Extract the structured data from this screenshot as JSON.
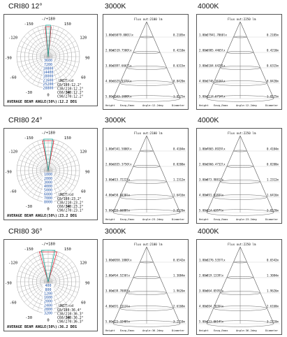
{
  "rows": [
    {
      "cri_label": "CRI80   12°",
      "col_labels": [
        "3000K",
        "4000K"
      ],
      "polar": {
        "ring_values": [
          "3600",
          "7200",
          "10800",
          "14400",
          "18000",
          "21600",
          "25200",
          "28800"
        ],
        "beam_text": [
          "C0/180:12.2°",
          "C30/210:12.2°",
          "C60/240:12.2°",
          "C90/270:12.2°"
        ],
        "footer": "AVERAGE BEAM ANGLE(50%):12.2 DEG"
      },
      "cones": [
        {
          "top": "Flux out:2100 lm",
          "rows": [
            {
              "h": "1.00m",
              "lux": "26079.0001lx",
              "d": "0.2105m"
            },
            {
              "h": "2.00m",
              "lux": "6519.7500lx",
              "d": "0.4210m"
            },
            {
              "h": "3.00m",
              "lux": "2897.6667lx",
              "d": "0.6315m"
            },
            {
              "h": "4.00m",
              "lux": "1629.9375lx",
              "d": "0.8420m"
            },
            {
              "h": "5.00m",
              "lux": "1043.1600lx",
              "d": "1.0525m"
            }
          ],
          "footer": [
            "Height",
            "Eavg,Emax",
            "Angle:12.2deg",
            "Diameter"
          ]
        },
        {
          "top": "Flux out:2250 lm",
          "rows": [
            {
              "h": "1.00m",
              "lux": "27941.7860lx",
              "d": "0.2105m"
            },
            {
              "h": "2.00m",
              "lux": "6985.4465lx",
              "d": "0.4210m"
            },
            {
              "h": "3.00m",
              "lux": "3104.6429lx",
              "d": "0.6315m"
            },
            {
              "h": "4.00m",
              "lux": "1746.3616lx",
              "d": "0.8420m"
            },
            {
              "h": "5.00m",
              "lux": "1117.6714lx",
              "d": "1.0525m"
            }
          ],
          "footer": [
            "Height",
            "Eavg,Emax",
            "Angle:12.2deg",
            "Diameter"
          ]
        }
      ]
    },
    {
      "cri_label": "CRI80   24°",
      "col_labels": [
        "3000K",
        "4000K"
      ],
      "polar": {
        "ring_values": [
          "1000",
          "2000",
          "3000",
          "4000",
          "5000",
          "6000",
          "7000",
          "8000"
        ],
        "beam_text": [
          "C0/180:23.2°",
          "C30/210:23.2°",
          "C60/240:23.2°",
          "C90/270:23.1°"
        ],
        "footer": "AVERAGE BEAM ANGLE(50%):23.2 DEG"
      },
      "cones": [
        {
          "top": "Flux out:2100 lm",
          "rows": [
            {
              "h": "1.00m",
              "lux": "7341.5000lx",
              "d": "0.4104m"
            },
            {
              "h": "2.00m",
              "lux": "1835.3750lx",
              "d": "0.8208m"
            },
            {
              "h": "3.00m",
              "lux": "815.7222lx",
              "d": "1.2312m"
            },
            {
              "h": "4.00m",
              "lux": "458.8438lx",
              "d": "1.6416m"
            },
            {
              "h": "5.00m",
              "lux": "293.6600lx",
              "d": "2.0520m"
            }
          ],
          "footer": [
            "Height",
            "Eavg,Emax",
            "Angle:23.2deg",
            "Diameter"
          ]
        },
        {
          "top": "Flux out:2250 lm",
          "rows": [
            {
              "h": "1.00m",
              "lux": "7865.8929lx",
              "d": "0.4104m"
            },
            {
              "h": "2.00m",
              "lux": "1966.4732lx",
              "d": "0.8208m"
            },
            {
              "h": "3.00m",
              "lux": "873.9881lx",
              "d": "1.2312m"
            },
            {
              "h": "4.00m",
              "lux": "491.6183lx",
              "d": "1.6416m"
            },
            {
              "h": "5.00m",
              "lux": "314.6357lx",
              "d": "2.0520m"
            }
          ],
          "footer": [
            "Height",
            "Eavg,Emax",
            "Angle:23.2deg",
            "Diameter"
          ]
        }
      ]
    },
    {
      "cri_label": "CRI80   36°",
      "col_labels": [
        "3000K",
        "4000K"
      ],
      "polar": {
        "ring_values": [
          "400",
          "800",
          "1200",
          "1600",
          "2000",
          "2400",
          "2800",
          "3200"
        ],
        "beam_text": [
          "C0/180:36.4°",
          "C30/210:36.3°",
          "C60/240:36.2°",
          "C90/270:36.3°"
        ],
        "footer": "AVERAGE BEAM ANGLE(50%):36.2 DEG"
      },
      "cones": [
        {
          "top": "Flux out:2100 lm",
          "rows": [
            {
              "h": "1.00m",
              "lux": "3058.1000lx",
              "d": "0.6542m"
            },
            {
              "h": "2.00m",
              "lux": "764.5250lx",
              "d": "1.3084m"
            },
            {
              "h": "3.00m",
              "lux": "339.7889lx",
              "d": "1.9626m"
            },
            {
              "h": "4.00m",
              "lux": "191.1313lx",
              "d": "2.6168m"
            },
            {
              "h": "5.00m",
              "lux": "122.3240lx",
              "d": "3.2710m"
            }
          ],
          "footer": [
            "Height",
            "Eavg,Emax",
            "Angle:36.2deg",
            "Diameter"
          ]
        },
        {
          "top": "Flux out:2250 lm",
          "rows": [
            {
              "h": "1.00m",
              "lux": "3276.5357lx",
              "d": "0.6542m"
            },
            {
              "h": "2.00m",
              "lux": "819.1339lx",
              "d": "1.3084m"
            },
            {
              "h": "3.00m",
              "lux": "364.0595lx",
              "d": "1.9626m"
            },
            {
              "h": "4.00m",
              "lux": "204.7835lx",
              "d": "2.6168m"
            },
            {
              "h": "5.00m",
              "lux": "131.0614lx",
              "d": "3.2710m"
            }
          ],
          "footer": [
            "Height",
            "Eavg,Emax",
            "Angle:36.2deg",
            "Diameter"
          ]
        }
      ]
    }
  ],
  "polar_angle_labels": [
    "-/+180",
    "-150",
    "150",
    "-120",
    "120",
    "-90",
    "90",
    "-60",
    "60",
    "-30",
    "30",
    "0"
  ],
  "polar_unit": "UNIT:cd",
  "chart_data": [
    {
      "type": "line",
      "title": "CRI80 12°",
      "subtitle": "AVERAGE BEAM ANGLE(50%):12.2 DEG",
      "ylabel": "UNIT:cd",
      "x": [
        0,
        6.1,
        12.2
      ],
      "series": [
        {
          "values": [
            28800,
            14400,
            1500
          ]
        }
      ]
    },
    {
      "type": "table",
      "title": "3000K",
      "headers": [
        "Height",
        "Eavg,Emax",
        "Diameter"
      ],
      "rows": [
        [
          "1.00m",
          "26079.0001lx",
          "0.2105m"
        ],
        [
          "2.00m",
          "6519.7500lx",
          "0.4210m"
        ],
        [
          "3.00m",
          "2897.6667lx",
          "0.6315m"
        ],
        [
          "4.00m",
          "1629.9375lx",
          "0.8420m"
        ],
        [
          "5.00m",
          "1043.1600lx",
          "1.0525m"
        ]
      ]
    },
    {
      "type": "table",
      "title": "4000K",
      "headers": [
        "Height",
        "Eavg,Emax",
        "Diameter"
      ],
      "rows": [
        [
          "1.00m",
          "27941.7860lx",
          "0.2105m"
        ],
        [
          "2.00m",
          "6985.4465lx",
          "0.4210m"
        ],
        [
          "3.00m",
          "3104.6429lx",
          "0.6315m"
        ],
        [
          "4.00m",
          "1746.3616lx",
          "0.8420m"
        ],
        [
          "5.00m",
          "1117.6714lx",
          "1.0525m"
        ]
      ]
    },
    {
      "type": "line",
      "title": "CRI80 24°",
      "subtitle": "AVERAGE BEAM ANGLE(50%):23.2 DEG",
      "ylabel": "UNIT:cd",
      "x": [
        0,
        11.6,
        23.2
      ],
      "series": [
        {
          "values": [
            8000,
            4000,
            400
          ]
        }
      ]
    },
    {
      "type": "table",
      "title": "3000K",
      "headers": [
        "Height",
        "Eavg,Emax",
        "Diameter"
      ],
      "rows": [
        [
          "1.00m",
          "7341.5000lx",
          "0.4104m"
        ],
        [
          "2.00m",
          "1835.3750lx",
          "0.8208m"
        ],
        [
          "3.00m",
          "815.7222lx",
          "1.2312m"
        ],
        [
          "4.00m",
          "458.8438lx",
          "1.6416m"
        ],
        [
          "5.00m",
          "293.6600lx",
          "2.0520m"
        ]
      ]
    },
    {
      "type": "table",
      "title": "4000K",
      "headers": [
        "Height",
        "Eavg,Emax",
        "Diameter"
      ],
      "rows": [
        [
          "1.00m",
          "7865.8929lx",
          "0.4104m"
        ],
        [
          "2.00m",
          "1966.4732lx",
          "0.8208m"
        ],
        [
          "3.00m",
          "873.9881lx",
          "1.2312m"
        ],
        [
          "4.00m",
          "491.6183lx",
          "1.6416m"
        ],
        [
          "5.00m",
          "314.6357lx",
          "2.0520m"
        ]
      ]
    },
    {
      "type": "line",
      "title": "CRI80 36°",
      "subtitle": "AVERAGE BEAM ANGLE(50%):36.2 DEG",
      "ylabel": "UNIT:cd",
      "x": [
        0,
        18.1,
        36.2
      ],
      "series": [
        {
          "values": [
            3200,
            1600,
            160
          ]
        }
      ]
    },
    {
      "type": "table",
      "title": "3000K",
      "headers": [
        "Height",
        "Eavg,Emax",
        "Diameter"
      ],
      "rows": [
        [
          "1.00m",
          "3058.1000lx",
          "0.6542m"
        ],
        [
          "2.00m",
          "764.5250lx",
          "1.3084m"
        ],
        [
          "3.00m",
          "339.7889lx",
          "1.9626m"
        ],
        [
          "4.00m",
          "191.1313lx",
          "2.6168m"
        ],
        [
          "5.00m",
          "122.3240lx",
          "3.2710m"
        ]
      ]
    },
    {
      "type": "table",
      "title": "4000K",
      "headers": [
        "Height",
        "Eavg,Emax",
        "Diameter"
      ],
      "rows": [
        [
          "1.00m",
          "3276.5357lx",
          "0.6542m"
        ],
        [
          "2.00m",
          "819.1339lx",
          "1.3084m"
        ],
        [
          "3.00m",
          "364.0595lx",
          "1.9626m"
        ],
        [
          "4.00m",
          "204.7835lx",
          "2.6168m"
        ],
        [
          "5.00m",
          "131.0614lx",
          "3.2710m"
        ]
      ]
    }
  ]
}
